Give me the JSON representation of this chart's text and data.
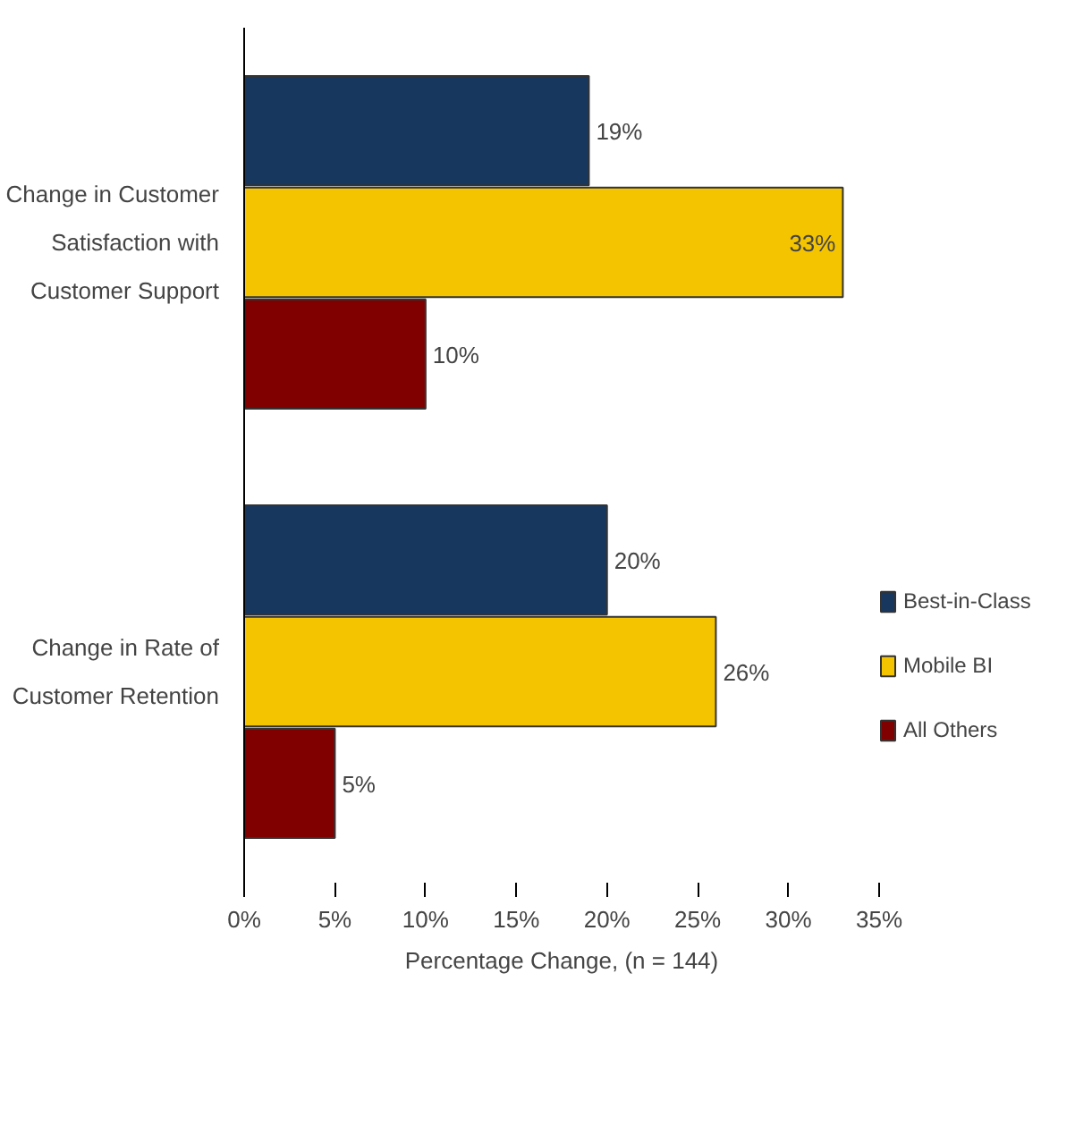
{
  "chart_data": {
    "type": "bar",
    "orientation": "horizontal",
    "xlabel": "Percentage Change, (n = 144)",
    "categories": [
      "Change in Customer Satisfaction with Customer Support",
      "Change in Rate of Customer Retention"
    ],
    "series": [
      {
        "name": "Best-in-Class",
        "color": "#17375e",
        "values": [
          19,
          20
        ],
        "value_labels": [
          "19%",
          "20%"
        ]
      },
      {
        "name": "Mobile BI",
        "color": "#f5c400",
        "values": [
          33,
          26
        ],
        "value_labels": [
          "33%",
          "26%"
        ]
      },
      {
        "name": "All Others",
        "color": "#800000",
        "values": [
          10,
          5
        ],
        "value_labels": [
          "10%",
          "5%"
        ]
      }
    ],
    "xlim": [
      0,
      35
    ],
    "xticks": [
      {
        "value": 0,
        "label": "0%"
      },
      {
        "value": 5,
        "label": "5%"
      },
      {
        "value": 10,
        "label": "10%"
      },
      {
        "value": 15,
        "label": "15%"
      },
      {
        "value": 20,
        "label": "20%"
      },
      {
        "value": 25,
        "label": "25%"
      },
      {
        "value": 30,
        "label": "30%"
      },
      {
        "value": 35,
        "label": "35%"
      }
    ],
    "grid": false,
    "legend": "right"
  }
}
